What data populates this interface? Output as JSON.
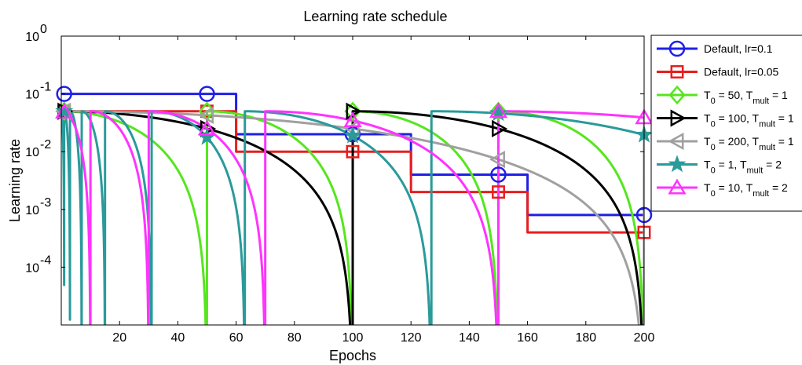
{
  "chart_data": {
    "type": "line",
    "title": "Learning rate schedule",
    "xlabel": "Epochs",
    "ylabel": "Learning rate",
    "xlim": [
      0,
      200
    ],
    "ylim": [
      1e-05,
      1
    ],
    "yscale": "log",
    "grid": false,
    "legend_position": "outside-right",
    "x_ticks": [
      20,
      40,
      60,
      80,
      100,
      120,
      140,
      160,
      180,
      200
    ],
    "x_tick_labels": [
      "20",
      "40",
      "60",
      "80",
      "100",
      "120",
      "140",
      "160",
      "180",
      "200"
    ],
    "y_ticks": [
      0.0001,
      0.001,
      0.01,
      0.1,
      1
    ],
    "y_tick_labels": [
      {
        "base": "10",
        "exp": "-4"
      },
      {
        "base": "10",
        "exp": "-3"
      },
      {
        "base": "10",
        "exp": "-2"
      },
      {
        "base": "10",
        "exp": "-1"
      },
      {
        "base": "10",
        "exp": "0"
      }
    ],
    "series": [
      {
        "name": "Default, lr=0.1",
        "legend": {
          "main": "Default, lr=0.1"
        },
        "color": "#1f1fe6",
        "marker": "circle",
        "kind": "step",
        "base": 0.1,
        "factor": 0.2,
        "milestones": [
          60,
          120,
          160
        ],
        "marker_x": [
          1,
          50,
          100,
          150,
          200
        ]
      },
      {
        "name": "Default, lr=0.05",
        "legend": {
          "main": "Default, lr=0.05"
        },
        "color": "#e61e1e",
        "marker": "square",
        "kind": "step",
        "base": 0.05,
        "factor": 0.2,
        "milestones": [
          60,
          120,
          160
        ],
        "marker_x": [
          1,
          50,
          100,
          150,
          200
        ]
      },
      {
        "name": "T0 = 50, Tmult = 1",
        "legend": {
          "t0": "50",
          "tmult": "1"
        },
        "color": "#55e61e",
        "marker": "diamond",
        "kind": "cosine",
        "base": 0.05,
        "T0": 50,
        "Tmult": 1,
        "marker_x": [
          1,
          50,
          100,
          150,
          200
        ]
      },
      {
        "name": "T0 = 100, Tmult = 1",
        "legend": {
          "t0": "100",
          "tmult": "1"
        },
        "color": "#000000",
        "marker": "triangle-right",
        "kind": "cosine",
        "base": 0.05,
        "T0": 100,
        "Tmult": 1,
        "marker_x": [
          1,
          50,
          100,
          150,
          200
        ]
      },
      {
        "name": "T0 = 200, Tmult = 1",
        "legend": {
          "t0": "200",
          "tmult": "1"
        },
        "color": "#a0a0a0",
        "marker": "triangle-left",
        "kind": "cosine",
        "base": 0.05,
        "T0": 200,
        "Tmult": 1,
        "marker_x": [
          1,
          50,
          100,
          150,
          200
        ]
      },
      {
        "name": "T0 = 1, Tmult = 2",
        "legend": {
          "t0": "1",
          "tmult": "2"
        },
        "color": "#2a9a9a",
        "marker": "star",
        "kind": "cosine",
        "base": 0.05,
        "T0": 1,
        "Tmult": 2,
        "marker_x": [
          1,
          50,
          100,
          150,
          200
        ]
      },
      {
        "name": "T0 = 10, Tmult = 2",
        "legend": {
          "t0": "10",
          "tmult": "2"
        },
        "color": "#ff33ff",
        "marker": "triangle-up",
        "kind": "cosine",
        "base": 0.05,
        "T0": 10,
        "Tmult": 2,
        "marker_x": [
          1,
          50,
          100,
          150,
          200
        ]
      }
    ]
  }
}
